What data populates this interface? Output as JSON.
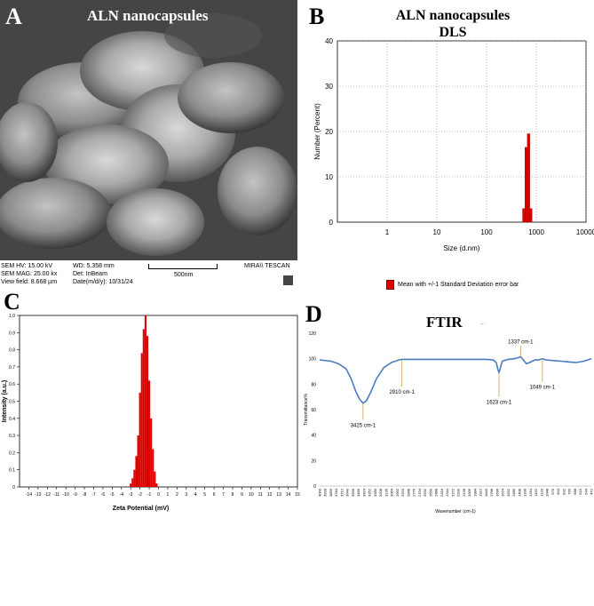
{
  "panels": {
    "a": {
      "letter": "A",
      "title": "ALN nanocapsules",
      "info": {
        "col1": [
          "SEM HV: 15.00 kV",
          "SEM MAG: 25.00 kx",
          "View field: 8.668 µm"
        ],
        "col2": [
          "WD: 5.358 mm",
          "Det: InBeam",
          "Date(m/d/y): 10/31/24"
        ],
        "scale_label": "500nm",
        "brand": "MIRA\\\\ TESCAN"
      }
    },
    "b": {
      "letter": "B",
      "title_line1": "ALN nanocapsules",
      "title_line2": "DLS",
      "legend": "Mean with +/-1 Standard Deviation error bar"
    },
    "c": {
      "letter": "C"
    },
    "d": {
      "letter": "D",
      "title": "FTIR",
      "title_suffix": "..."
    }
  },
  "colors": {
    "bar_red": "#dd0000",
    "ftir_line": "#4a7cc0",
    "annotation_line": "#c9a24a"
  },
  "chart_data": [
    {
      "id": "dls",
      "type": "bar",
      "xlabel": "Size (d.nm)",
      "ylabel": "Number (Percent)",
      "x_scale": "log",
      "xlim": [
        0.1,
        10000
      ],
      "ylim": [
        0,
        40
      ],
      "x_ticks": [
        1,
        10,
        100,
        1000,
        10000
      ],
      "x_tick_labels": [
        "1",
        "10",
        "100",
        "1000",
        "10000"
      ],
      "y_ticks": [
        0,
        10,
        20,
        30,
        40
      ],
      "grid": true,
      "bars": [
        {
          "x0": 530,
          "x1": 590,
          "value": 3
        },
        {
          "x0": 590,
          "x1": 660,
          "value": 16.5
        },
        {
          "x0": 660,
          "x1": 740,
          "value": 19.5
        },
        {
          "x0": 740,
          "x1": 820,
          "value": 3
        }
      ]
    },
    {
      "id": "zeta",
      "type": "bar",
      "xlabel": "Zeta Potential (mV)",
      "ylabel": "Intensity (a.u.)",
      "xlim": [
        -15,
        15
      ],
      "ylim": [
        0,
        1.0
      ],
      "x_ticks": [
        -14,
        -13,
        -12,
        -11,
        -10,
        -9,
        -8,
        -7,
        -6,
        -5,
        -4,
        -3,
        -2,
        -1,
        0,
        1,
        2,
        3,
        4,
        5,
        6,
        7,
        8,
        9,
        10,
        11,
        12,
        13,
        14,
        15
      ],
      "y_ticks": [
        0,
        0.1,
        0.2,
        0.3,
        0.4,
        0.5,
        0.6,
        0.7,
        0.8,
        0.9,
        1.0
      ],
      "y_tick_labels": [
        "0",
        "0.1",
        "0.2",
        "0.3",
        "0.4",
        "0.5",
        "0.6",
        "0.7",
        "0.8",
        "0.9",
        "1.0"
      ],
      "bin_width": 0.2,
      "bins": [
        {
          "x": -3.0,
          "value": 0.02
        },
        {
          "x": -2.8,
          "value": 0.05
        },
        {
          "x": -2.6,
          "value": 0.1
        },
        {
          "x": -2.4,
          "value": 0.18
        },
        {
          "x": -2.2,
          "value": 0.3
        },
        {
          "x": -2.0,
          "value": 0.55
        },
        {
          "x": -1.8,
          "value": 0.78
        },
        {
          "x": -1.6,
          "value": 0.92
        },
        {
          "x": -1.4,
          "value": 1.0
        },
        {
          "x": -1.2,
          "value": 0.88
        },
        {
          "x": -1.0,
          "value": 0.62
        },
        {
          "x": -0.8,
          "value": 0.4
        },
        {
          "x": -0.6,
          "value": 0.22
        },
        {
          "x": -0.4,
          "value": 0.09
        },
        {
          "x": -0.2,
          "value": 0.02
        }
      ]
    },
    {
      "id": "ftir",
      "type": "line",
      "xlabel": "Wavenumber (cm-1)",
      "ylabel": "Transmittance%",
      "xlim": [
        4000,
        400
      ],
      "x_reversed": true,
      "ylim": [
        0,
        120
      ],
      "y_ticks": [
        0,
        20,
        40,
        60,
        80,
        100,
        120
      ],
      "x_tick_labels": [
        "4000",
        "3928",
        "3856",
        "3784",
        "3712",
        "3640",
        "3568",
        "3496",
        "3424",
        "3352",
        "3280",
        "3208",
        "3136",
        "3064",
        "2992",
        "2920",
        "2848",
        "2776",
        "2704",
        "2632",
        "2560",
        "2488",
        "2416",
        "2344",
        "2272",
        "2200",
        "2128",
        "2056",
        "1984",
        "1912",
        "1840",
        "1768",
        "1696",
        "1624",
        "1552",
        "1480",
        "1408",
        "1336",
        "1264",
        "1192",
        "1120",
        "1048",
        "976",
        "904",
        "832",
        "760",
        "688",
        "616",
        "544",
        "472"
      ],
      "series": [
        {
          "points": [
            [
              4000,
              99
            ],
            [
              3850,
              98
            ],
            [
              3750,
              96
            ],
            [
              3650,
              92
            ],
            [
              3580,
              84
            ],
            [
              3520,
              74
            ],
            [
              3470,
              68
            ],
            [
              3425,
              65
            ],
            [
              3380,
              67
            ],
            [
              3320,
              74
            ],
            [
              3250,
              84
            ],
            [
              3150,
              93
            ],
            [
              3050,
              97
            ],
            [
              2950,
              99
            ],
            [
              2910,
              99.5
            ],
            [
              2700,
              99.5
            ],
            [
              2400,
              99.5
            ],
            [
              2100,
              99.5
            ],
            [
              1800,
              99.5
            ],
            [
              1700,
              99
            ],
            [
              1660,
              97
            ],
            [
              1640,
              92
            ],
            [
              1623,
              89
            ],
            [
              1605,
              93
            ],
            [
              1580,
              98
            ],
            [
              1500,
              99.5
            ],
            [
              1420,
              100
            ],
            [
              1380,
              100.5
            ],
            [
              1337,
              101.5
            ],
            [
              1300,
              99
            ],
            [
              1260,
              96
            ],
            [
              1220,
              97
            ],
            [
              1150,
              99
            ],
            [
              1100,
              99
            ],
            [
              1049,
              100
            ],
            [
              1000,
              99
            ],
            [
              900,
              98.5
            ],
            [
              800,
              98
            ],
            [
              700,
              97.5
            ],
            [
              600,
              97
            ],
            [
              500,
              98
            ],
            [
              400,
              100
            ]
          ]
        }
      ],
      "annotations": [
        {
          "label": "3425 cm-1",
          "x": 3425,
          "y": 65,
          "label_y": 52,
          "below": true
        },
        {
          "label": "2910 cm-1",
          "x": 2910,
          "y": 99,
          "label_y": 78,
          "below": true
        },
        {
          "label": "1623 cm-1",
          "x": 1623,
          "y": 89,
          "label_y": 70,
          "below": true
        },
        {
          "label": "1337 cm-1",
          "x": 1337,
          "y": 101.5,
          "label_y": 110,
          "below": false
        },
        {
          "label": "1049 cm-1",
          "x": 1049,
          "y": 100,
          "label_y": 82,
          "below": true
        }
      ]
    }
  ]
}
